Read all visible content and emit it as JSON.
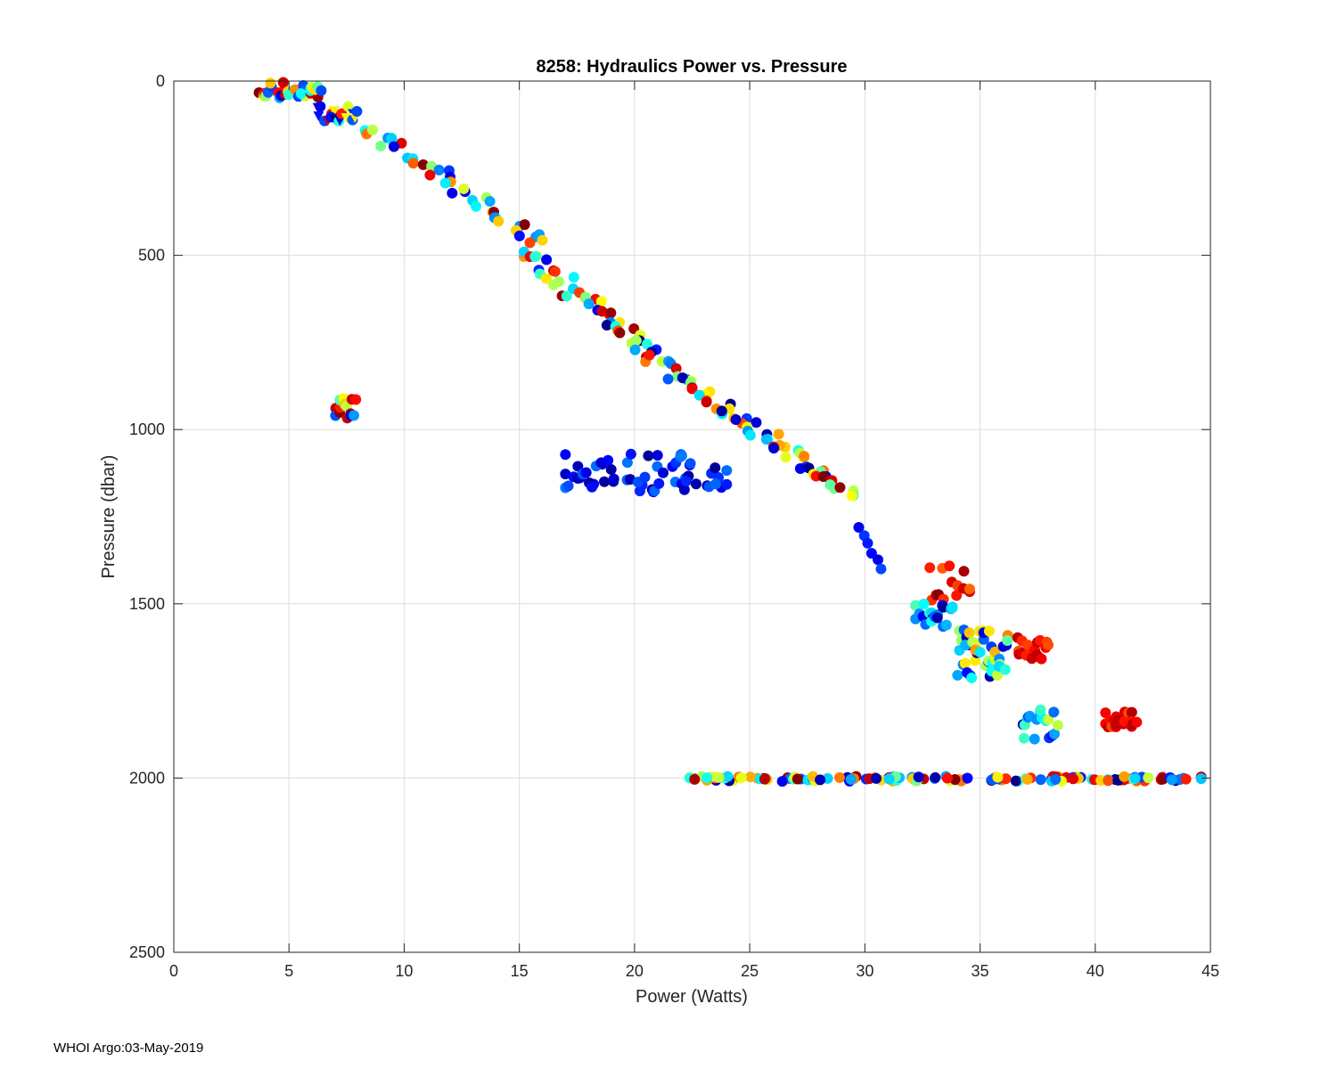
{
  "footer": {
    "text": "WHOI Argo:03-May-2019"
  },
  "chart_data": {
    "type": "scatter",
    "title": "8258: Hydraulics Power vs. Pressure",
    "xlabel": "Power (Watts)",
    "ylabel": "Pressure (dbar)",
    "xlim": [
      0,
      45
    ],
    "ylim": [
      0,
      2500
    ],
    "y_reversed": true,
    "grid": true,
    "xticks": [
      0,
      5,
      10,
      15,
      20,
      25,
      30,
      35,
      40,
      45
    ],
    "yticks": [
      0,
      500,
      1000,
      1500,
      2000,
      2500
    ],
    "colormap": "jet",
    "clusters": [
      {
        "name": "surface",
        "x_range": [
          3.7,
          6.4
        ],
        "y_range": [
          0,
          50
        ],
        "color_range": [
          0.0,
          1.0
        ],
        "n": 30
      },
      {
        "name": "shallow-triangles",
        "x_range": [
          6.2,
          8.0
        ],
        "y_range": [
          70,
          115
        ],
        "color_range": [
          0.0,
          1.0
        ],
        "n": 18
      },
      {
        "name": "descent-line-1",
        "x_range": [
          8.3,
          16.0
        ],
        "y_range": [
          130,
          470
        ],
        "color_range": [
          0.0,
          1.0
        ],
        "n": 40
      },
      {
        "name": "descent-line-2",
        "x_range": [
          15.2,
          22.5
        ],
        "y_range": [
          490,
          870
        ],
        "color_range": [
          0.0,
          1.0
        ],
        "n": 55
      },
      {
        "name": "descent-line-3",
        "x_range": [
          22.5,
          29.5
        ],
        "y_range": [
          880,
          1190
        ],
        "color_range": [
          0.0,
          1.0
        ],
        "n": 50
      },
      {
        "name": "mid-depth-low-power",
        "x_range": [
          7.0,
          7.9
        ],
        "y_range": [
          910,
          975
        ],
        "color_range": [
          0.0,
          1.0
        ],
        "n": 14
      },
      {
        "name": "park-1100",
        "x_range": [
          17.0,
          24.0
        ],
        "y_range": [
          1070,
          1180
        ],
        "color_range": [
          0.02,
          0.25
        ],
        "n": 60
      },
      {
        "name": "descent-1300",
        "x_range": [
          29.7,
          30.7
        ],
        "y_range": [
          1280,
          1400
        ],
        "color_range": [
          0.0,
          0.2
        ],
        "n": 6
      },
      {
        "name": "cluster-1400",
        "x_range": [
          32.8,
          34.6
        ],
        "y_range": [
          1390,
          1500
        ],
        "color_range": [
          0.75,
          1.0
        ],
        "n": 14
      },
      {
        "name": "cluster-1550",
        "x_range": [
          32.2,
          33.8
        ],
        "y_range": [
          1500,
          1570
        ],
        "color_range": [
          0.0,
          0.45
        ],
        "n": 20
      },
      {
        "name": "cluster-1620",
        "x_range": [
          34.0,
          36.2
        ],
        "y_range": [
          1570,
          1720
        ],
        "color_range": [
          0.0,
          0.75
        ],
        "n": 45
      },
      {
        "name": "cluster-1620-hot",
        "x_range": [
          36.6,
          38.0
        ],
        "y_range": [
          1590,
          1660
        ],
        "color_range": [
          0.8,
          0.95
        ],
        "n": 18
      },
      {
        "name": "cluster-1840",
        "x_range": [
          36.8,
          38.4
        ],
        "y_range": [
          1800,
          1890
        ],
        "color_range": [
          0.0,
          0.6
        ],
        "n": 18
      },
      {
        "name": "cluster-1830-hot",
        "x_range": [
          40.4,
          41.8
        ],
        "y_range": [
          1810,
          1855
        ],
        "color_range": [
          0.8,
          0.95
        ],
        "n": 20
      },
      {
        "name": "profile-2000",
        "x_range": [
          22.4,
          44.6
        ],
        "y_range": [
          1995,
          2010
        ],
        "color_range": [
          0.0,
          1.0
        ],
        "n": 140
      }
    ]
  }
}
